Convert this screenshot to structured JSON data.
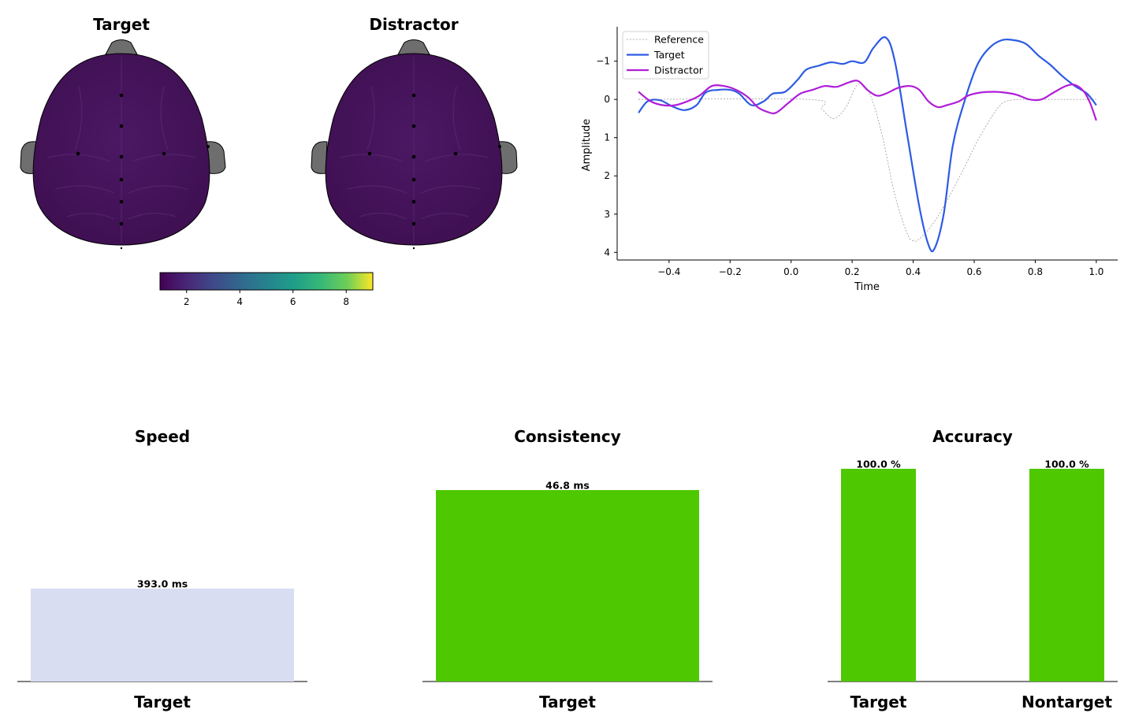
{
  "colors": {
    "brain": "#46145a",
    "brain_outline": "#000000",
    "ears": "#6e6e6e",
    "speed_bar": "#d9ddf2",
    "good_bar": "#4ec800",
    "target_line": "#2d5be3",
    "distractor_line": "#b01ed8",
    "reference_line": "#9a9a9a"
  },
  "chart_data": [
    {
      "id": "topomaps",
      "type": "heatmap",
      "titles": [
        "Target",
        "Distractor"
      ],
      "colorbar": {
        "colormap": "viridis",
        "range": [
          1,
          9
        ],
        "ticks": [
          2,
          4,
          6,
          8
        ]
      }
    },
    {
      "id": "erp",
      "type": "line",
      "xlabel": "Time",
      "ylabel": "Amplitude",
      "xlim": [
        -0.57,
        1.07
      ],
      "ylim": [
        4.2,
        -1.9
      ],
      "y_inverted": true,
      "xticks": [
        -0.4,
        -0.2,
        0.0,
        0.2,
        0.4,
        0.6,
        0.8,
        1.0
      ],
      "yticks": [
        -1,
        0,
        1,
        2,
        3,
        4
      ],
      "legend": "top-left",
      "series": [
        {
          "name": "Reference",
          "style": "dotted",
          "points": [
            [
              -0.5,
              0
            ],
            [
              0.06,
              0
            ],
            [
              0.1,
              0.25
            ],
            [
              0.14,
              0.5
            ],
            [
              0.18,
              0.2
            ],
            [
              0.22,
              -0.4
            ],
            [
              0.26,
              -0.1
            ],
            [
              0.3,
              1.0
            ],
            [
              0.34,
              2.5
            ],
            [
              0.38,
              3.5
            ],
            [
              0.4,
              3.7
            ],
            [
              0.42,
              3.65
            ],
            [
              0.46,
              3.3
            ],
            [
              0.5,
              2.8
            ],
            [
              0.56,
              1.9
            ],
            [
              0.62,
              0.95
            ],
            [
              0.68,
              0.2
            ],
            [
              0.72,
              0.02
            ],
            [
              0.8,
              0
            ],
            [
              1.0,
              0
            ]
          ]
        },
        {
          "name": "Target",
          "style": "solid",
          "points": [
            [
              -0.5,
              0.35
            ],
            [
              -0.47,
              0.05
            ],
            [
              -0.43,
              0.02
            ],
            [
              -0.39,
              0.18
            ],
            [
              -0.35,
              0.28
            ],
            [
              -0.31,
              0.15
            ],
            [
              -0.28,
              -0.18
            ],
            [
              -0.24,
              -0.25
            ],
            [
              -0.2,
              -0.25
            ],
            [
              -0.17,
              -0.15
            ],
            [
              -0.13,
              0.15
            ],
            [
              -0.09,
              0.05
            ],
            [
              -0.06,
              -0.15
            ],
            [
              -0.02,
              -0.2
            ],
            [
              0.02,
              -0.5
            ],
            [
              0.05,
              -0.78
            ],
            [
              0.09,
              -0.88
            ],
            [
              0.13,
              -0.97
            ],
            [
              0.17,
              -0.93
            ],
            [
              0.2,
              -1.0
            ],
            [
              0.24,
              -0.97
            ],
            [
              0.27,
              -1.35
            ],
            [
              0.31,
              -1.62
            ],
            [
              0.34,
              -1.0
            ],
            [
              0.38,
              0.9
            ],
            [
              0.42,
              2.8
            ],
            [
              0.45,
              3.8
            ],
            [
              0.47,
              3.9
            ],
            [
              0.5,
              3.0
            ],
            [
              0.53,
              1.2
            ],
            [
              0.57,
              0
            ],
            [
              0.61,
              -0.9
            ],
            [
              0.65,
              -1.35
            ],
            [
              0.69,
              -1.55
            ],
            [
              0.73,
              -1.55
            ],
            [
              0.77,
              -1.45
            ],
            [
              0.81,
              -1.15
            ],
            [
              0.85,
              -0.9
            ],
            [
              0.89,
              -0.6
            ],
            [
              0.93,
              -0.35
            ],
            [
              0.97,
              -0.15
            ],
            [
              1.0,
              0.15
            ]
          ]
        },
        {
          "name": "Distractor",
          "style": "solid",
          "points": [
            [
              -0.5,
              -0.2
            ],
            [
              -0.46,
              0.05
            ],
            [
              -0.42,
              0.15
            ],
            [
              -0.38,
              0.15
            ],
            [
              -0.34,
              0.05
            ],
            [
              -0.3,
              -0.1
            ],
            [
              -0.26,
              -0.35
            ],
            [
              -0.22,
              -0.35
            ],
            [
              -0.18,
              -0.25
            ],
            [
              -0.14,
              -0.05
            ],
            [
              -0.11,
              0.2
            ],
            [
              -0.08,
              0.32
            ],
            [
              -0.05,
              0.35
            ],
            [
              -0.01,
              0.1
            ],
            [
              0.03,
              -0.15
            ],
            [
              0.07,
              -0.25
            ],
            [
              0.11,
              -0.35
            ],
            [
              0.15,
              -0.33
            ],
            [
              0.19,
              -0.45
            ],
            [
              0.22,
              -0.48
            ],
            [
              0.25,
              -0.25
            ],
            [
              0.28,
              -0.1
            ],
            [
              0.31,
              -0.15
            ],
            [
              0.35,
              -0.3
            ],
            [
              0.39,
              -0.35
            ],
            [
              0.42,
              -0.25
            ],
            [
              0.45,
              0.05
            ],
            [
              0.48,
              0.2
            ],
            [
              0.51,
              0.15
            ],
            [
              0.55,
              0.05
            ],
            [
              0.58,
              -0.1
            ],
            [
              0.62,
              -0.18
            ],
            [
              0.66,
              -0.2
            ],
            [
              0.7,
              -0.18
            ],
            [
              0.74,
              -0.12
            ],
            [
              0.78,
              0.0
            ],
            [
              0.82,
              0.0
            ],
            [
              0.86,
              -0.18
            ],
            [
              0.9,
              -0.35
            ],
            [
              0.93,
              -0.38
            ],
            [
              0.96,
              -0.2
            ],
            [
              0.98,
              0.1
            ],
            [
              1.0,
              0.55
            ]
          ]
        }
      ]
    },
    {
      "id": "speed",
      "type": "bar",
      "title": "Speed",
      "categories": [
        "Target"
      ],
      "values": [
        393.0
      ],
      "labels": [
        "393.0 ms"
      ],
      "ylim": [
        0,
        900
      ]
    },
    {
      "id": "consistency",
      "type": "bar",
      "title": "Consistency",
      "categories": [
        "Target"
      ],
      "values": [
        46.8
      ],
      "labels": [
        "46.8 ms"
      ],
      "ylim": [
        0,
        52
      ]
    },
    {
      "id": "accuracy",
      "type": "bar",
      "title": "Accuracy",
      "categories": [
        "Target",
        "Nontarget"
      ],
      "values": [
        100.0,
        100.0
      ],
      "labels": [
        "100.0 %",
        "100.0 %"
      ],
      "ylim": [
        0,
        100
      ]
    }
  ]
}
